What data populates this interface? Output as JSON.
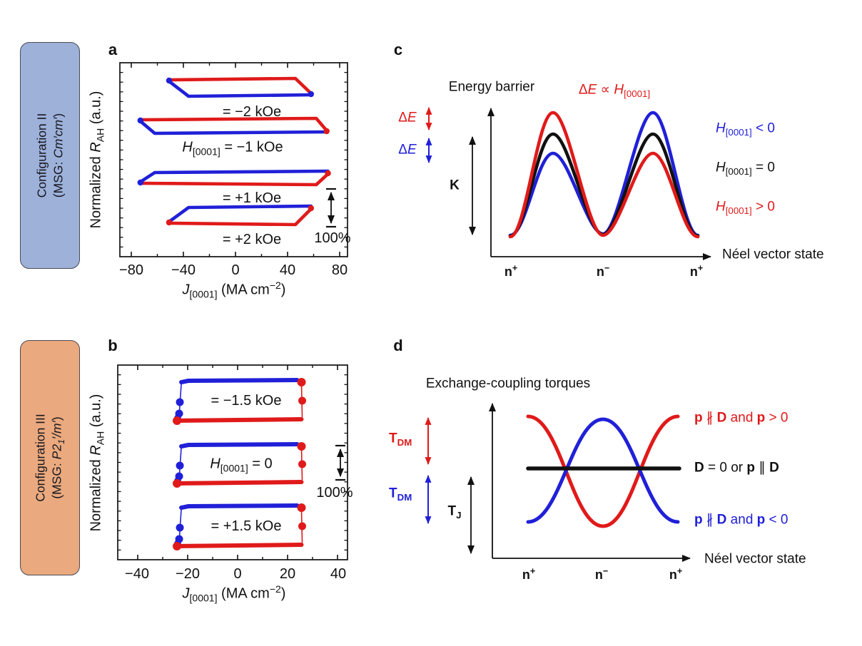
{
  "colors": {
    "red": "#e01a1a",
    "blue": "#2020d8",
    "black": "#111111",
    "box_blue": "#9db1d9",
    "box_orange": "#eaa97e"
  },
  "config_boxes": {
    "ii": {
      "title": "Configuration II",
      "msg_prefix": "(MSG: ",
      "msg_italic": "Cm′cm′",
      "msg_suffix": ")"
    },
    "iii": {
      "title": "Configuration III",
      "msg_prefix": "(MSG: ",
      "msg_italic_pre": "P2",
      "msg_sub": "1",
      "msg_italic_post": "′/m′",
      "msg_suffix": ")"
    }
  },
  "panel_a": {
    "label": "a",
    "ylabel": {
      "pre": "Normalized ",
      "sym": "R",
      "sub": "AH",
      "post": " (a.u.)"
    },
    "xlabel": {
      "sym": "J",
      "sub": "[0001]",
      "mid": " (MA cm",
      "sup": "−2",
      "post": ")"
    },
    "xticks": [
      "−80",
      "−40",
      "0",
      "40",
      "80"
    ],
    "scalebar_label": "100%",
    "loop_labels": {
      "l1": "= −2 kOe",
      "l2_sym": "H",
      "l2_sub": "[0001]",
      "l2_rest": " = −1 kOe",
      "l3": "= +1 kOe",
      "l4": "= +2 kOe"
    }
  },
  "panel_b": {
    "label": "b",
    "ylabel": {
      "pre": "Normalized ",
      "sym": "R",
      "sub": "AH",
      "post": " (a.u.)"
    },
    "xlabel": {
      "sym": "J",
      "sub": "[0001]",
      "mid": " (MA cm",
      "sup": "−2",
      "post": ")"
    },
    "xticks": [
      "−40",
      "−20",
      "0",
      "20",
      "40"
    ],
    "scalebar_label": "100%",
    "loop_labels": {
      "l1": "= −1.5 kOe",
      "l2_sym": "H",
      "l2_sub": "[0001]",
      "l2_rest": " = 0",
      "l3": "= +1.5 kOe"
    }
  },
  "panel_c": {
    "label": "c",
    "axis_title": "Energy barrier",
    "prop_label": {
      "lhs_delta": "Δ",
      "lhs_e": "E",
      "prop": " ∝ ",
      "sym": "H",
      "sub": "[0001]"
    },
    "arrow_labels": {
      "delta": "Δ",
      "e": "E",
      "k": "K"
    },
    "legend": [
      {
        "sym": "H",
        "sub": "[0001]",
        "rest": " < 0",
        "color": "blue"
      },
      {
        "sym": "H",
        "sub": "[0001]",
        "rest": " = 0",
        "color": "black"
      },
      {
        "sym": "H",
        "sub": "[0001]",
        "rest": " > 0",
        "color": "red"
      }
    ],
    "xaxis_label": "Néel vector state",
    "xticks": [
      {
        "n": "n",
        "sign": "+"
      },
      {
        "n": "n",
        "sign": "−"
      },
      {
        "n": "n",
        "sign": "+"
      }
    ]
  },
  "panel_d": {
    "label": "d",
    "axis_title": "Exchange-coupling torques",
    "arrow_labels": {
      "t": "T",
      "tdm_sub": "DM",
      "tj_sub": "J"
    },
    "legend": [
      {
        "p1": "p",
        "np": " ∦ ",
        "d1": "D",
        "mid": " and ",
        "p2": "p",
        "rest": " > 0",
        "color": "red"
      },
      {
        "d1": "D",
        "eq": " = 0 or ",
        "p1": "p",
        "par": " ∥ ",
        "d2": "D",
        "color": "black"
      },
      {
        "p1": "p",
        "np": " ∦ ",
        "d1": "D",
        "mid": " and ",
        "p2": "p",
        "rest": " < 0",
        "color": "blue"
      }
    ],
    "xaxis_label": "Néel vector state",
    "xticks": [
      {
        "n": "n",
        "sign": "+"
      },
      {
        "n": "n",
        "sign": "−"
      },
      {
        "n": "n",
        "sign": "+"
      }
    ]
  },
  "chart_data": [
    {
      "panel": "a",
      "type": "line",
      "kind": "current-driven switching hysteresis loops, Configuration II",
      "xlabel": "J[0001] (MA cm−2)",
      "ylabel": "Normalized RAH (a.u.)",
      "xlim": [
        -95,
        95
      ],
      "xticks": [
        -80,
        -40,
        0,
        40,
        80
      ],
      "series": [
        "red",
        "blue"
      ],
      "scale_bar": "100%",
      "loops": [
        {
          "H_label": "= −2 kOe",
          "H_kOe": -2,
          "top": "red",
          "J_left": -51,
          "J_right": 58,
          "left_switch_end": -36,
          "right_switch_start": 46
        },
        {
          "H_label": "H[0001] = −1 kOe",
          "H_kOe": -1,
          "top": "red",
          "J_left": -73,
          "J_right": 70,
          "left_switch_end": -62,
          "right_switch_start": 62
        },
        {
          "H_label": "= +1 kOe",
          "H_kOe": 1,
          "top": "blue",
          "J_left": -73,
          "J_right": 71,
          "left_switch_end": -62,
          "right_switch_start": 62
        },
        {
          "H_label": "= +2 kOe",
          "H_kOe": 2,
          "top": "blue",
          "J_left": -51,
          "J_right": 58,
          "left_switch_end": -36,
          "right_switch_start": 46
        }
      ]
    },
    {
      "panel": "b",
      "type": "line",
      "kind": "full rectangular hysteresis loops, Configuration III",
      "xlabel": "J[0001] (MA cm−2)",
      "ylabel": "Normalized RAH (a.u.)",
      "xlim": [
        -50,
        50
      ],
      "xticks": [
        -40,
        -20,
        0,
        20,
        40
      ],
      "series": [
        "red",
        "blue"
      ],
      "scale_bar": "100%",
      "loops": [
        {
          "H_label": "= −1.5 kOe",
          "H_kOe": -1.5,
          "top": "blue",
          "J_switch_neg": -23.7,
          "J_switch_pos": 25
        },
        {
          "H_label": "H[0001] = 0",
          "H_kOe": 0,
          "top": "blue",
          "J_switch_neg": -23.7,
          "J_switch_pos": 25
        },
        {
          "H_label": "= +1.5 kOe",
          "H_kOe": 1.5,
          "top": "blue",
          "J_switch_neg": -23.7,
          "J_switch_pos": 25
        }
      ]
    },
    {
      "panel": "c",
      "type": "schematic",
      "title": "Energy barrier",
      "x_states": [
        "n+",
        "n−",
        "n+"
      ],
      "curves": [
        {
          "label": "H[0001] > 0",
          "color": "red",
          "peak1": "high",
          "peak2": "low"
        },
        {
          "label": "H[0001] = 0",
          "color": "black",
          "peak1": "mid",
          "peak2": "mid"
        },
        {
          "label": "H[0001] < 0",
          "color": "blue",
          "peak1": "low",
          "peak2": "high"
        }
      ],
      "annotations": [
        "ΔE (red)",
        "ΔE (blue)",
        "K",
        "ΔE ∝ H[0001]",
        "Néel vector state"
      ]
    },
    {
      "panel": "d",
      "type": "schematic",
      "title": "Exchange-coupling torques",
      "x_states": [
        "n+",
        "n−",
        "n+"
      ],
      "curves": [
        {
          "label": "p ∦ D and p > 0",
          "color": "red",
          "shape": "max at n+, min at n−"
        },
        {
          "label": "D = 0 or p ∥ D",
          "color": "black",
          "shape": "constant"
        },
        {
          "label": "p ∦ D and p < 0",
          "color": "blue",
          "shape": "min at n+, max at n−"
        }
      ],
      "annotations": [
        "T_DM (red)",
        "T_DM (blue)",
        "T_J",
        "Néel vector state"
      ]
    }
  ]
}
